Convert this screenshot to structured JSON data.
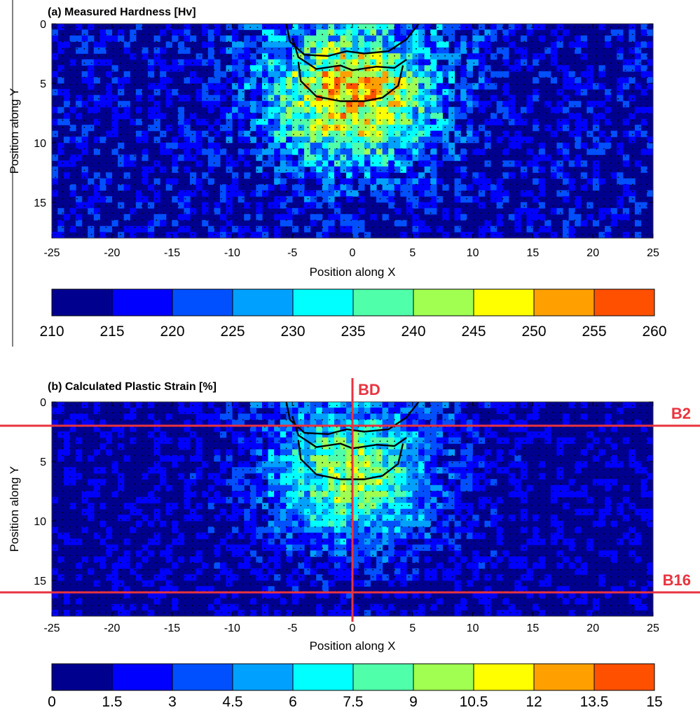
{
  "chart_data": [
    {
      "type": "heatmap",
      "title": "(a) Measured Hardness [Hv]",
      "xlabel": "Position along X",
      "ylabel": "Position along Y",
      "xlim": [
        -25,
        25
      ],
      "ylim": [
        0,
        18
      ],
      "y_reversed": true,
      "xticks": [
        -25,
        -20,
        -15,
        -10,
        -5,
        0,
        5,
        10,
        15,
        20,
        25
      ],
      "yticks": [
        0,
        5,
        10,
        15
      ],
      "colorbar": {
        "levels": [
          210,
          215,
          220,
          225,
          230,
          235,
          240,
          245,
          250,
          255,
          260
        ],
        "colors": [
          "#00008f",
          "#0000ff",
          "#0050ff",
          "#00a0ff",
          "#00ffff",
          "#50ffaa",
          "#a0ff50",
          "#ffff00",
          "#ffa000",
          "#ff5000"
        ]
      },
      "field": {
        "background_value": 212,
        "peak_value": 252,
        "peak_center": [
          0,
          6
        ],
        "spread_x": 7,
        "spread_y": 6,
        "surface_band": [
          -12,
          12
        ]
      },
      "contours": [
        [
          [
            -5.5,
            0
          ],
          [
            -5.2,
            1.5
          ],
          [
            -4,
            2.6
          ],
          [
            -2,
            2.7
          ],
          [
            -0.5,
            2.3
          ],
          [
            1,
            2.5
          ],
          [
            3,
            2.3
          ],
          [
            4.5,
            1.3
          ],
          [
            5.5,
            0
          ]
        ],
        [
          [
            -5,
            1.2
          ],
          [
            -4.5,
            2.8
          ],
          [
            -3,
            3.8
          ],
          [
            -1,
            3.5
          ],
          [
            0,
            3.9
          ],
          [
            2,
            3.6
          ],
          [
            3.5,
            3.7
          ],
          [
            4.5,
            3
          ]
        ],
        [
          [
            -4.5,
            3.2
          ],
          [
            -4.3,
            4.8
          ],
          [
            -3,
            6.1
          ],
          [
            -1,
            6.5
          ],
          [
            1,
            6.5
          ],
          [
            2.5,
            6.2
          ],
          [
            3.8,
            5.2
          ],
          [
            4.2,
            3.5
          ]
        ]
      ],
      "grid": false
    },
    {
      "type": "heatmap",
      "title": "(b) Calculated Plastic Strain [%]",
      "xlabel": "Position along X",
      "ylabel": "Position along Y",
      "xlim": [
        -25,
        25
      ],
      "ylim": [
        0,
        18
      ],
      "y_reversed": true,
      "xticks": [
        -25,
        -20,
        -15,
        -10,
        -5,
        0,
        5,
        10,
        15,
        20,
        25
      ],
      "yticks": [
        0,
        5,
        10,
        15
      ],
      "colorbar": {
        "levels": [
          "0",
          "1.5",
          "3",
          "4.5",
          "6",
          "7.5",
          "9",
          "10.5",
          "12",
          "13.5",
          "15"
        ],
        "colors": [
          "#00008f",
          "#0000ff",
          "#0050ff",
          "#00a0ff",
          "#00ffff",
          "#50ffaa",
          "#a0ff50",
          "#ffff00",
          "#ffa000",
          "#ff5000"
        ]
      },
      "field": {
        "background_value": 0.4,
        "peak_value": 9.5,
        "peak_center": [
          0,
          6
        ],
        "spread_x": 7,
        "spread_y": 6,
        "surface_band": [
          -12,
          12
        ]
      },
      "contours": [
        [
          [
            -5.5,
            0
          ],
          [
            -5.2,
            1.5
          ],
          [
            -4,
            2.6
          ],
          [
            -2,
            2.7
          ],
          [
            -0.5,
            2.3
          ],
          [
            1,
            2.5
          ],
          [
            3,
            2.3
          ],
          [
            4.5,
            1.3
          ],
          [
            5.5,
            0
          ]
        ],
        [
          [
            -5,
            1.2
          ],
          [
            -4.5,
            2.8
          ],
          [
            -3,
            3.8
          ],
          [
            -1,
            3.5
          ],
          [
            0,
            3.9
          ],
          [
            2,
            3.6
          ],
          [
            3.5,
            3.7
          ],
          [
            4.5,
            3
          ]
        ],
        [
          [
            -4.5,
            3.2
          ],
          [
            -4.3,
            4.8
          ],
          [
            -3,
            6.1
          ],
          [
            -1,
            6.5
          ],
          [
            1,
            6.5
          ],
          [
            2.5,
            6.2
          ],
          [
            3.8,
            5.2
          ],
          [
            4.2,
            3.5
          ]
        ]
      ],
      "reference_lines": [
        {
          "label": "BD",
          "orientation": "vertical",
          "x": 0
        },
        {
          "label": "B2",
          "orientation": "horizontal",
          "y": 2
        },
        {
          "label": "B16",
          "orientation": "horizontal",
          "y": 16
        }
      ],
      "reference_line_color": "#e8343f",
      "grid": false
    }
  ]
}
